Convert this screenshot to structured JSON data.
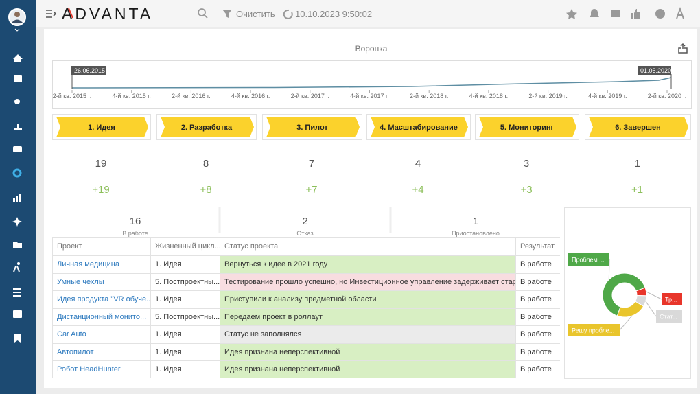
{
  "header": {
    "logo": "ADVANTA",
    "clear": "Очистить",
    "datetime": "10.10.2023 9:50:02"
  },
  "panel": {
    "title": "Воронка"
  },
  "timeline": {
    "start": "26.06.2015",
    "end": "01.05.2020",
    "ticks": [
      "2-й кв. 2015 г.",
      "4-й кв. 2015 г.",
      "2-й кв. 2016 г.",
      "4-й кв. 2016 г.",
      "2-й кв. 2017 г.",
      "4-й кв. 2017 г.",
      "2-й кв. 2018 г.",
      "4-й кв. 2018 г.",
      "2-й кв. 2019 г.",
      "4-й кв. 2019 г.",
      "2-й кв. 2020 г."
    ]
  },
  "stages": [
    {
      "label": "1. Идея",
      "count": 19,
      "delta": "+19"
    },
    {
      "label": "2. Разработка",
      "count": 8,
      "delta": "+8"
    },
    {
      "label": "3. Пилот",
      "count": 7,
      "delta": "+7"
    },
    {
      "label": "4. Масштабирование",
      "count": 4,
      "delta": "+4"
    },
    {
      "label": "5. Мониторинг",
      "count": 3,
      "delta": "+3"
    },
    {
      "label": "6. Завершен",
      "count": 1,
      "delta": "+1"
    }
  ],
  "stats": [
    {
      "value": 16,
      "label": "В работе"
    },
    {
      "value": 2,
      "label": "Отказ"
    },
    {
      "value": 1,
      "label": "Приостановлено"
    }
  ],
  "table": {
    "columns": [
      "Проект",
      "Жизненный цикл...",
      "Статус проекта",
      "Результат"
    ],
    "rows": [
      {
        "project": "Личная медицина",
        "lifecycle": "1. Идея",
        "status": "Вернуться к идее в 2021 году",
        "result": "В работе",
        "status_color": "#d8efc3"
      },
      {
        "project": "Умные чехлы",
        "lifecycle": "5. Постпроектны...",
        "status": "Тестирование прошло успешно, но Инвестиционное управление задерживает старт в ...",
        "result": "В работе",
        "status_color": "#f8dde0"
      },
      {
        "project": "Идея продукта \"VR обуче...",
        "lifecycle": "1. Идея",
        "status": "Приступили к анализу предметной области",
        "result": "В работе",
        "status_color": "#d8efc3"
      },
      {
        "project": "Дистанционный монито...",
        "lifecycle": "5. Постпроектны...",
        "status": "Передаем проект в роллаут",
        "result": "В работе",
        "status_color": "#d8efc3"
      },
      {
        "project": "Car Auto",
        "lifecycle": "1. Идея",
        "status": "Статус не заполнялся",
        "result": "В работе",
        "status_color": "#ebebeb"
      },
      {
        "project": "Автопилот",
        "lifecycle": "1. Идея",
        "status": "Идея признана неперспективной",
        "result": "В работе",
        "status_color": "#d8efc3"
      },
      {
        "project": "Робот HeadHunter",
        "lifecycle": "1. Идея",
        "status": "Идея признана неперспективной",
        "result": "В работе",
        "status_color": "#d8efc3"
      }
    ]
  },
  "donut": {
    "segments": [
      {
        "label": "Тр...",
        "value": 6,
        "color": "#e8352a"
      },
      {
        "label": "Стат...",
        "value": 8,
        "color": "#d9d9d9"
      },
      {
        "label": "Решу пробле...",
        "value": 22,
        "color": "#e9c52c"
      },
      {
        "label": "Проблем ...",
        "value": 64,
        "color": "#4fa848"
      }
    ]
  }
}
